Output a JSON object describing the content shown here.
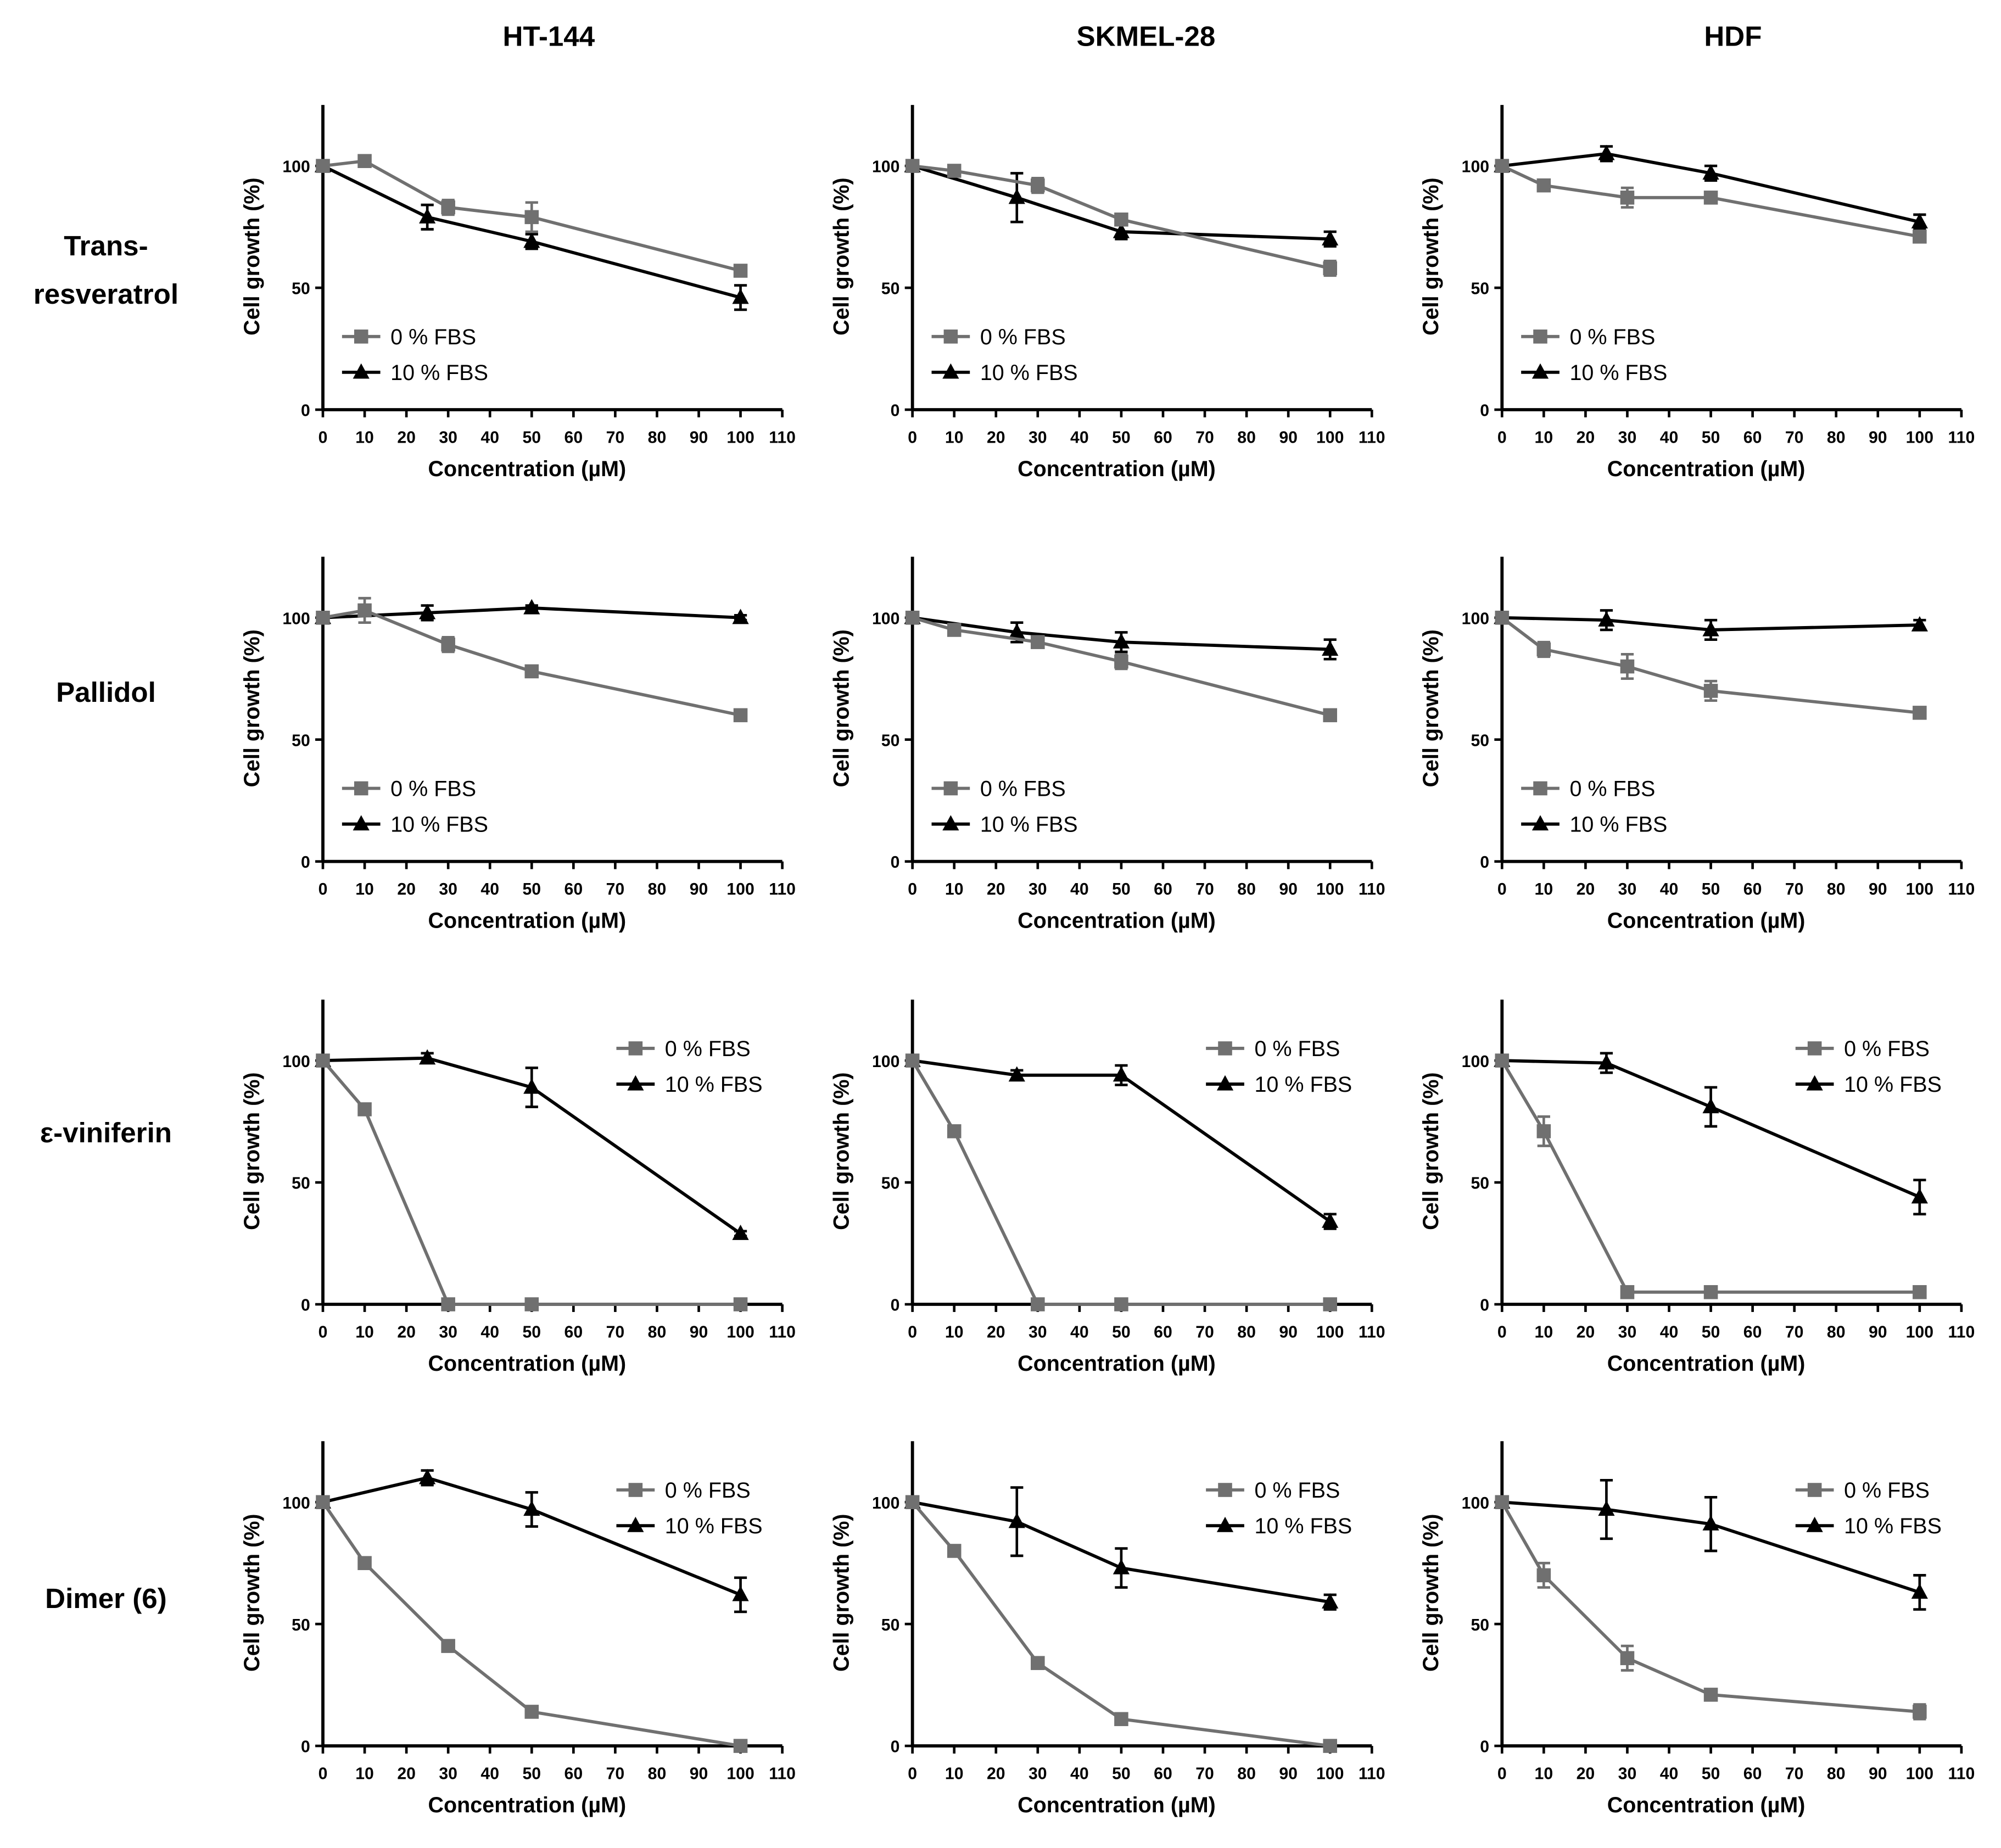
{
  "column_titles": [
    "HT-144",
    "SKMEL-28",
    "HDF"
  ],
  "row_labels": [
    [
      "Trans-",
      "resveratrol"
    ],
    [
      "Pallidol"
    ],
    [
      "ε-viniferin"
    ],
    [
      "Dimer (6)"
    ]
  ],
  "colors": {
    "fbs0": "#707070",
    "fbs10": "#000000",
    "axis": "#000000"
  },
  "chart_data": {
    "type": "line",
    "xlabel": "Concentration (µM)",
    "ylabel": "Cell growth (%)",
    "xlim": [
      0,
      110
    ],
    "ylim": [
      0,
      125
    ],
    "xticks": [
      0,
      10,
      20,
      30,
      40,
      50,
      60,
      70,
      80,
      90,
      100,
      110
    ],
    "yticks": [
      0,
      50,
      100
    ],
    "legend": [
      "0 % FBS",
      "10 % FBS"
    ],
    "x_0fbs": [
      0,
      10,
      30,
      50,
      100
    ],
    "x_10fbs": [
      0,
      25,
      50,
      100
    ],
    "panels": [
      {
        "compound": "Trans-resveratrol",
        "cell_line": "HT-144",
        "legend_position": "bottom-left",
        "series": [
          {
            "name": "0 % FBS",
            "values": [
              100,
              102,
              83,
              79,
              57
            ],
            "err": [
              0,
              0,
              3,
              6,
              1
            ]
          },
          {
            "name": "10 % FBS",
            "values": [
              100,
              79,
              69,
              46
            ],
            "err": [
              0,
              5,
              3,
              5
            ]
          }
        ]
      },
      {
        "compound": "Trans-resveratrol",
        "cell_line": "SKMEL-28",
        "legend_position": "bottom-left",
        "series": [
          {
            "name": "0 % FBS",
            "values": [
              100,
              98,
              92,
              78,
              58
            ],
            "err": [
              0,
              0,
              3,
              1,
              3
            ]
          },
          {
            "name": "10 % FBS",
            "values": [
              100,
              87,
              73,
              70
            ],
            "err": [
              0,
              10,
              3,
              3
            ]
          }
        ]
      },
      {
        "compound": "Trans-resveratrol",
        "cell_line": "HDF",
        "legend_position": "bottom-left",
        "series": [
          {
            "name": "0 % FBS",
            "values": [
              100,
              92,
              87,
              87,
              71
            ],
            "err": [
              0,
              2,
              4,
              1,
              2
            ]
          },
          {
            "name": "10 % FBS",
            "values": [
              100,
              105,
              97,
              77
            ],
            "err": [
              0,
              3,
              3,
              3
            ]
          }
        ]
      },
      {
        "compound": "Pallidol",
        "cell_line": "HT-144",
        "legend_position": "bottom-left",
        "series": [
          {
            "name": "0 % FBS",
            "values": [
              100,
              103,
              89,
              78,
              60
            ],
            "err": [
              0,
              5,
              3,
              1,
              1
            ]
          },
          {
            "name": "10 % FBS",
            "values": [
              100,
              102,
              104,
              100
            ],
            "err": [
              0,
              3,
              1,
              1
            ]
          }
        ]
      },
      {
        "compound": "Pallidol",
        "cell_line": "SKMEL-28",
        "legend_position": "bottom-left",
        "series": [
          {
            "name": "0 % FBS",
            "values": [
              100,
              95,
              90,
              82,
              60
            ],
            "err": [
              0,
              1,
              1,
              3,
              1
            ]
          },
          {
            "name": "10 % FBS",
            "values": [
              100,
              94,
              90,
              87
            ],
            "err": [
              0,
              4,
              4,
              4
            ]
          }
        ]
      },
      {
        "compound": "Pallidol",
        "cell_line": "HDF",
        "legend_position": "bottom-left",
        "series": [
          {
            "name": "0 % FBS",
            "values": [
              100,
              87,
              80,
              70,
              61
            ],
            "err": [
              0,
              3,
              5,
              4,
              1
            ]
          },
          {
            "name": "10 % FBS",
            "values": [
              100,
              99,
              95,
              97
            ],
            "err": [
              0,
              4,
              4,
              2
            ]
          }
        ]
      },
      {
        "compound": "ε-viniferin",
        "cell_line": "HT-144",
        "legend_position": "top-right",
        "series": [
          {
            "name": "0 % FBS",
            "values": [
              100,
              80,
              0,
              0,
              0
            ],
            "err": [
              0,
              0,
              0,
              0,
              0
            ]
          },
          {
            "name": "10 % FBS",
            "values": [
              100,
              101,
              89,
              29
            ],
            "err": [
              0,
              2,
              8,
              1
            ]
          }
        ]
      },
      {
        "compound": "ε-viniferin",
        "cell_line": "SKMEL-28",
        "legend_position": "top-right",
        "series": [
          {
            "name": "0 % FBS",
            "values": [
              100,
              71,
              0,
              0,
              0
            ],
            "err": [
              0,
              1,
              0,
              0,
              0
            ]
          },
          {
            "name": "10 % FBS",
            "values": [
              100,
              94,
              94,
              34
            ],
            "err": [
              0,
              2,
              4,
              3
            ]
          }
        ]
      },
      {
        "compound": "ε-viniferin",
        "cell_line": "HDF",
        "legend_position": "top-right",
        "series": [
          {
            "name": "0 % FBS",
            "values": [
              100,
              71,
              5,
              5,
              5
            ],
            "err": [
              0,
              6,
              1,
              1,
              1
            ]
          },
          {
            "name": "10 % FBS",
            "values": [
              100,
              99,
              81,
              44
            ],
            "err": [
              0,
              4,
              8,
              7
            ]
          }
        ]
      },
      {
        "compound": "Dimer (6)",
        "cell_line": "HT-144",
        "legend_position": "top-right",
        "series": [
          {
            "name": "0 % FBS",
            "values": [
              100,
              75,
              41,
              14,
              0
            ],
            "err": [
              0,
              0,
              1,
              2,
              0
            ]
          },
          {
            "name": "10 % FBS",
            "values": [
              100,
              110,
              97,
              62
            ],
            "err": [
              0,
              3,
              7,
              7
            ]
          }
        ]
      },
      {
        "compound": "Dimer (6)",
        "cell_line": "SKMEL-28",
        "legend_position": "top-right",
        "series": [
          {
            "name": "0 % FBS",
            "values": [
              100,
              80,
              34,
              11,
              0
            ],
            "err": [
              0,
              0,
              1,
              1,
              0
            ]
          },
          {
            "name": "10 % FBS",
            "values": [
              100,
              92,
              73,
              59
            ],
            "err": [
              0,
              14,
              8,
              3
            ]
          }
        ]
      },
      {
        "compound": "Dimer (6)",
        "cell_line": "HDF",
        "legend_position": "top-right",
        "series": [
          {
            "name": "0 % FBS",
            "values": [
              100,
              70,
              36,
              21,
              14
            ],
            "err": [
              0,
              5,
              5,
              1,
              3
            ]
          },
          {
            "name": "10 % FBS",
            "values": [
              100,
              97,
              91,
              63
            ],
            "err": [
              0,
              12,
              11,
              7
            ]
          }
        ]
      }
    ]
  }
}
